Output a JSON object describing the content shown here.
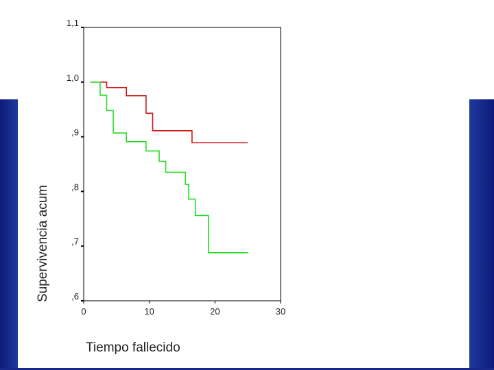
{
  "chart_data": {
    "type": "line",
    "step": true,
    "title": "",
    "xlabel": "Tiempo fallecido",
    "ylabel": "Supervivencia acum",
    "xlim": [
      0,
      30
    ],
    "ylim": [
      0.6,
      1.1
    ],
    "xticks": [
      0,
      10,
      20,
      30
    ],
    "xtick_labels": [
      "0",
      "10",
      "20",
      "30"
    ],
    "yticks": [
      0.6,
      0.7,
      0.8,
      0.9,
      1.0,
      1.1
    ],
    "ytick_labels": [
      ",6",
      ",7",
      ",8",
      ",9",
      "1,0",
      "1,1"
    ],
    "grid": false,
    "legend": "none",
    "series": [
      {
        "color": "#cc1111",
        "x": [
          1,
          3.5,
          6.5,
          9.5,
          10.5,
          16.5,
          25
        ],
        "y": [
          1.0,
          0.99,
          0.975,
          0.943,
          0.911,
          0.889,
          0.889
        ]
      },
      {
        "color": "#22dd22",
        "x": [
          1,
          2.5,
          3.5,
          4.5,
          6.5,
          9.5,
          11.5,
          12.5,
          15.5,
          16,
          17,
          19,
          25
        ],
        "y": [
          1.0,
          0.976,
          0.948,
          0.907,
          0.891,
          0.874,
          0.855,
          0.835,
          0.813,
          0.786,
          0.756,
          0.688,
          0.688
        ]
      }
    ]
  }
}
